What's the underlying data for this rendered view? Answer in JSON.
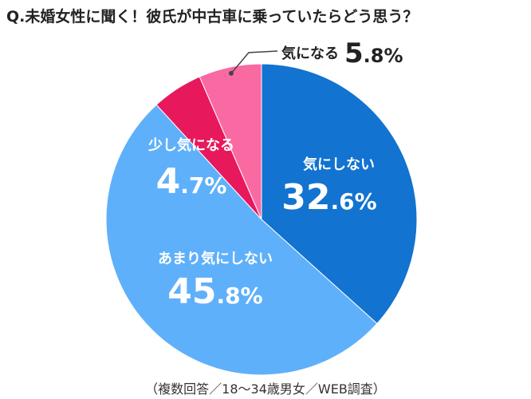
{
  "chart_data": {
    "type": "pie",
    "title": "Q.未婚女性に聞く！彼氏が中古車に乗っていたらどう思う？",
    "note": "（複数回答／18～34歳男女／WEB調査）",
    "unit": "%",
    "start": "12 o'clock, clockwise",
    "slices": [
      {
        "label": "気にしない",
        "value": 32.6,
        "int": "32",
        "dec": ".6",
        "color": "#1273D0"
      },
      {
        "label": "あまり気にしない",
        "value": 45.8,
        "int": "45",
        "dec": ".8",
        "color": "#5FB0FA"
      },
      {
        "label": "少し気になる",
        "value": 4.7,
        "int": "4",
        "dec": ".7",
        "color": "#E8185D"
      },
      {
        "label": "気になる",
        "value": 5.8,
        "int": "5",
        "dec": ".8",
        "color": "#F96AA3"
      }
    ],
    "colors": {
      "inner_text": "#ffffff",
      "outer_text": "#222222",
      "leader": "#444444"
    }
  }
}
